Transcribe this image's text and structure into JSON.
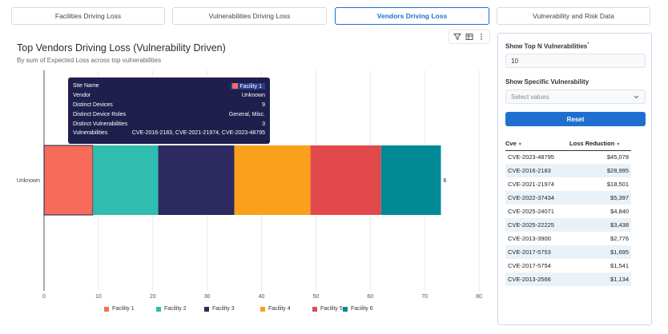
{
  "tabs": [
    {
      "label": "Facilities Driving Loss",
      "active": false
    },
    {
      "label": "Vulnerabilities Driving Loss",
      "active": false
    },
    {
      "label": "Vendors Driving Loss",
      "active": true
    },
    {
      "label": "Vulnerability and Risk Data",
      "active": false
    }
  ],
  "toolbar": {
    "icons": [
      "filter-icon",
      "table-icon",
      "more-icon"
    ],
    "glyphs": [
      "⊽",
      "▦",
      "⋮"
    ]
  },
  "chart_data": {
    "type": "bar",
    "orientation": "horizontal",
    "stacked": true,
    "title": "Top Vendors Driving Loss (Vulnerability Driven)",
    "subtitle": "By sum of Expected Loss across top vulnerabilities",
    "categories": [
      "Unknown"
    ],
    "series": [
      {
        "name": "Facility 1",
        "values": [
          9
        ],
        "color": "#f76b5a"
      },
      {
        "name": "Facility 2",
        "values": [
          12
        ],
        "color": "#2ebdaf"
      },
      {
        "name": "Facility 3",
        "values": [
          14
        ],
        "color": "#2c2a5e"
      },
      {
        "name": "Facility 4",
        "values": [
          14
        ],
        "color": "#fba01c"
      },
      {
        "name": "Facility 5",
        "values": [
          13
        ],
        "color": "#e2494b"
      },
      {
        "name": "Facility 6",
        "values": [
          11
        ],
        "color": "#008a95"
      }
    ],
    "total_label": "6",
    "xlim": [
      0,
      80
    ],
    "xticks": [
      0,
      10,
      20,
      30,
      40,
      50,
      60,
      70,
      80
    ],
    "grid": true,
    "legend_position": "bottom"
  },
  "tooltip": {
    "rows": [
      {
        "key": "Site Name",
        "value": "Facility 1"
      },
      {
        "key": "Vendor",
        "value": "Unknown"
      },
      {
        "key": "Distinct Devices",
        "value": "9"
      },
      {
        "key": "Distinct Device Roles",
        "value": "General, Misc."
      },
      {
        "key": "Distinct Vulnerabilities",
        "value": "3"
      },
      {
        "key": "Vulnerabilities",
        "value": "CVE-2016-2183, CVE-2021-21974, CVE-2023-48795"
      }
    ]
  },
  "panel": {
    "topn_label": "Show Top N Vulnerabilities",
    "required_mark": "*",
    "topn_value": "10",
    "specific_label": "Show Specific Vulnerability",
    "specific_placeholder": "Select values",
    "reset_label": "Reset",
    "table": {
      "headers": [
        "Cve",
        "Loss Reduction"
      ],
      "rows": [
        [
          "CVE-2023-48795",
          "$45,078"
        ],
        [
          "CVE-2016-2183",
          "$28,995"
        ],
        [
          "CVE-2021-21974",
          "$18,501"
        ],
        [
          "CVE-2022-37434",
          "$5,397"
        ],
        [
          "CVE-2025-24071",
          "$4,840"
        ],
        [
          "CVE-2025-22225",
          "$3,438"
        ],
        [
          "CVE-2013-3900",
          "$2,776"
        ],
        [
          "CVE-2017-5753",
          "$1,695"
        ],
        [
          "CVE-2017-5754",
          "$1,541"
        ],
        [
          "CVE-2013-2566",
          "$1,134"
        ]
      ]
    }
  }
}
